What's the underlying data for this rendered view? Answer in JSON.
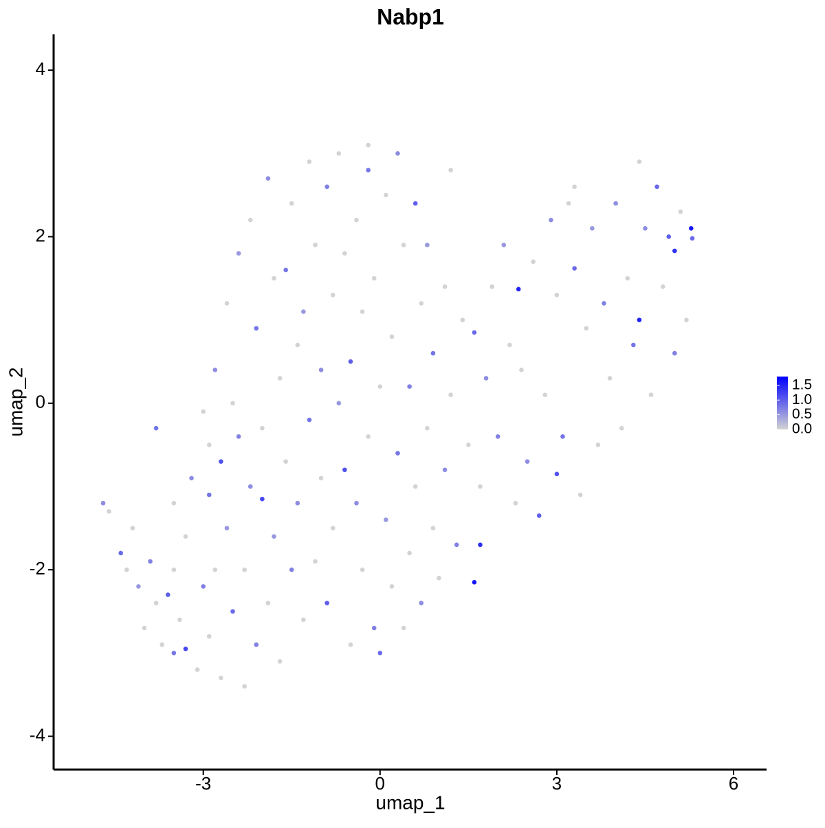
{
  "chart_data": {
    "type": "scatter",
    "title": "Nabp1",
    "x_label": "umap_1",
    "y_label": "umap_2",
    "xlim": [
      -5.54,
      6.56
    ],
    "ylim": [
      -4.4,
      4.43
    ],
    "xticks": [
      -3,
      0,
      3,
      6
    ],
    "yticks": [
      -4,
      -2,
      0,
      2,
      4
    ],
    "color_low": "#d3d3d3",
    "color_high": "#0000ff",
    "colorbar_lim": [
      0,
      1.8
    ],
    "colorbar_ticks": [
      {
        "value": 0,
        "label": "0.0"
      },
      0.5,
      {
        "value": 1,
        "label": "1.0"
      },
      1.5
    ],
    "x": [
      -4.7,
      -4.6,
      -4.4,
      -4.2,
      -4.1,
      -4.0,
      -3.9,
      -3.8,
      -3.7,
      -3.6,
      -3.5,
      -3.5,
      -3.4,
      -3.3,
      -3.3,
      -3.2,
      -3.1,
      -3.0,
      -3.0,
      -2.9,
      -2.9,
      -2.8,
      -2.8,
      -2.7,
      -2.7,
      -2.6,
      -2.6,
      -2.5,
      -2.5,
      -2.4,
      -2.4,
      -2.3,
      -2.3,
      -2.2,
      -2.2,
      -2.1,
      -2.1,
      -2.0,
      -2.0,
      -1.9,
      -1.9,
      -1.8,
      -1.8,
      -1.7,
      -1.7,
      -1.6,
      -1.6,
      -1.5,
      -1.5,
      -1.4,
      -1.4,
      -1.3,
      -1.3,
      -1.2,
      -1.2,
      -1.1,
      -1.1,
      -1.0,
      -1.0,
      -0.9,
      -0.9,
      -0.8,
      -0.8,
      -0.7,
      -0.7,
      -0.6,
      -0.6,
      -0.5,
      -0.5,
      -0.4,
      -0.4,
      -0.3,
      -0.3,
      -0.2,
      -0.2,
      -0.1,
      -0.1,
      0.0,
      0.0,
      0.1,
      0.1,
      0.2,
      0.2,
      0.3,
      0.3,
      0.4,
      0.4,
      0.5,
      0.5,
      0.6,
      0.6,
      0.7,
      0.7,
      0.8,
      0.8,
      0.9,
      0.9,
      1.0,
      1.1,
      1.1,
      1.2,
      1.3,
      1.4,
      1.5,
      1.6,
      1.6,
      1.7,
      1.7,
      1.8,
      1.9,
      2.0,
      2.1,
      2.2,
      2.3,
      2.35,
      2.4,
      2.5,
      2.6,
      2.7,
      2.8,
      2.9,
      3.0,
      3.0,
      3.1,
      3.2,
      3.3,
      3.4,
      3.5,
      3.6,
      3.7,
      3.8,
      3.9,
      4.0,
      4.1,
      4.2,
      4.3,
      4.4,
      4.4,
      4.5,
      4.6,
      4.7,
      4.8,
      4.9,
      5.0,
      5.0,
      5.1,
      5.2,
      5.28,
      5.3,
      -3.8,
      -3.5,
      -4.3,
      -2.9,
      3.3,
      1.2,
      -0.2
    ],
    "y": [
      -1.2,
      -1.3,
      -1.8,
      -1.5,
      -2.2,
      -2.7,
      -1.9,
      -2.4,
      -2.9,
      -2.3,
      -2.0,
      -3.0,
      -2.6,
      -2.95,
      -1.6,
      -0.9,
      -3.2,
      -2.2,
      -0.1,
      -1.1,
      -2.8,
      -2.0,
      0.4,
      -0.7,
      -3.3,
      -1.5,
      1.2,
      -2.5,
      0.0,
      -0.4,
      1.8,
      -3.4,
      -2.0,
      -1.0,
      2.2,
      0.9,
      -2.9,
      -1.15,
      -0.3,
      -2.4,
      2.7,
      1.5,
      -1.6,
      0.3,
      -3.1,
      1.6,
      -0.7,
      2.4,
      -2.0,
      0.7,
      -1.2,
      1.1,
      -2.6,
      2.9,
      -0.2,
      1.9,
      -1.9,
      0.4,
      -0.9,
      2.6,
      -2.4,
      1.3,
      -1.5,
      0.0,
      3.0,
      -0.8,
      1.8,
      -2.9,
      0.5,
      2.2,
      -1.2,
      1.1,
      -2.0,
      2.8,
      -0.4,
      -2.7,
      1.5,
      0.2,
      -3.0,
      2.5,
      -1.4,
      0.8,
      -2.2,
      3.0,
      -0.6,
      1.9,
      -2.7,
      0.2,
      -1.8,
      2.4,
      -1.0,
      1.2,
      -2.4,
      -0.3,
      1.9,
      -1.5,
      0.6,
      -2.1,
      1.4,
      -0.8,
      0.1,
      -1.7,
      1.0,
      -0.5,
      0.85,
      -2.15,
      -1.7,
      -1.0,
      0.3,
      1.4,
      -0.4,
      1.9,
      0.7,
      -1.2,
      1.37,
      0.4,
      -0.7,
      1.7,
      -1.35,
      0.1,
      2.2,
      -0.85,
      1.3,
      -0.4,
      2.4,
      1.62,
      -1.1,
      0.9,
      2.1,
      -0.5,
      1.2,
      0.3,
      2.4,
      -0.3,
      1.5,
      0.7,
      1.0,
      2.9,
      2.1,
      0.1,
      2.6,
      1.4,
      2.0,
      1.83,
      0.6,
      2.3,
      1.0,
      2.1,
      1.98,
      -0.3,
      -1.2,
      -2.0,
      -0.5,
      2.6,
      2.8,
      3.1
    ],
    "values": [
      0.6,
      0,
      0.9,
      0,
      0.5,
      0,
      0.7,
      0,
      0,
      1.0,
      0,
      0.8,
      0,
      1.2,
      0,
      0.6,
      0,
      0.7,
      0,
      0.8,
      0,
      0,
      0.6,
      1.1,
      0,
      0.5,
      0,
      0.9,
      0,
      0.7,
      0.5,
      0,
      0,
      0.6,
      0,
      0.8,
      0.7,
      1.2,
      0,
      0,
      0.6,
      0,
      0.5,
      0,
      0,
      0.8,
      0,
      0,
      0.7,
      0,
      0.6,
      0.5,
      0,
      0,
      0.8,
      0,
      0,
      0.6,
      0,
      0.7,
      1.0,
      0,
      0,
      0.5,
      0,
      1.1,
      0,
      0,
      1.0,
      0,
      0.6,
      0,
      0,
      0.8,
      0,
      0.7,
      0,
      0,
      0.9,
      0,
      0.5,
      0,
      0,
      0.6,
      0.8,
      0,
      0,
      0.7,
      0,
      1.0,
      0,
      0,
      0.6,
      0,
      0.5,
      0,
      0.8,
      0,
      0,
      0.6,
      0,
      0.7,
      0,
      0,
      0.9,
      1.6,
      1.4,
      0,
      0.6,
      0,
      0.7,
      0.5,
      0,
      0,
      1.5,
      0,
      0.6,
      0,
      1.0,
      0,
      0.6,
      1.1,
      0,
      0.8,
      0,
      0.9,
      0,
      0,
      0.5,
      0,
      0.7,
      0,
      0.6,
      0,
      0,
      0.8,
      1.5,
      0,
      0.6,
      0,
      0.9,
      0,
      1.0,
      1.4,
      0.7,
      0,
      0,
      1.6,
      0.9,
      0.8,
      0,
      0,
      0,
      0,
      0,
      0
    ]
  }
}
